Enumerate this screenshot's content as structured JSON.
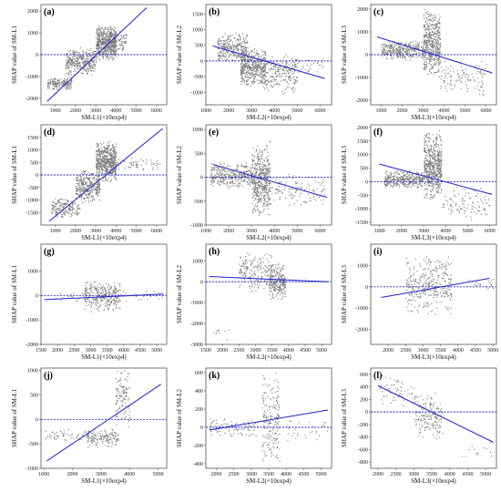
{
  "chart_data": [
    {
      "label": "(a)",
      "type": "scatter",
      "xlabel": "SM-L1(×10exp4)",
      "ylabel": "SHAP value of SM-L1",
      "xlim": [
        300,
        6500
      ],
      "ylim": [
        -2300,
        2300
      ],
      "xticks": [
        1000,
        2000,
        3000,
        4000,
        5000,
        6000
      ],
      "yticks": [
        -2000,
        -1000,
        0,
        1000,
        2000
      ],
      "clusters": [
        [
          600,
          1800,
          -1600,
          -1000,
          180
        ],
        [
          1500,
          3000,
          -900,
          300,
          350
        ],
        [
          3000,
          4000,
          -200,
          1300,
          600
        ],
        [
          3800,
          4500,
          200,
          1100,
          80
        ]
      ],
      "fit": [
        [
          600,
          -2150
        ],
        [
          5500,
          2150
        ]
      ],
      "mean_baseline": 0
    },
    {
      "label": "(b)",
      "type": "scatter",
      "xlabel": "SM-L2(×10exp4)",
      "ylabel": "SHAP value of SM-L2",
      "xlim": [
        1000,
        6500
      ],
      "ylim": [
        -1400,
        1800
      ],
      "xticks": [
        1000,
        2000,
        3000,
        4000,
        5000,
        6000
      ],
      "yticks": [
        -1000,
        -500,
        0,
        500,
        1000,
        1500
      ],
      "clusters": [
        [
          1500,
          2800,
          0,
          900,
          300
        ],
        [
          2500,
          3600,
          -800,
          400,
          500
        ],
        [
          3500,
          5000,
          -1000,
          200,
          200
        ],
        [
          4000,
          6200,
          -400,
          100,
          60
        ]
      ],
      "fit": [
        [
          1300,
          480
        ],
        [
          6200,
          -560
        ]
      ],
      "mean_baseline": 0
    },
    {
      "label": "(c)",
      "type": "scatter",
      "xlabel": "SM-L3(×10exp4)",
      "ylabel": "SHAP value of SM-L3",
      "xlim": [
        500,
        6500
      ],
      "ylim": [
        -2200,
        2200
      ],
      "xticks": [
        1000,
        2000,
        3000,
        4000,
        5000,
        6000
      ],
      "yticks": [
        -2000,
        -1000,
        0,
        1000,
        2000
      ],
      "clusters": [
        [
          1000,
          3000,
          -200,
          600,
          350
        ],
        [
          3000,
          3800,
          -900,
          1900,
          500
        ],
        [
          3800,
          6000,
          -1800,
          -200,
          120
        ]
      ],
      "fit": [
        [
          800,
          780
        ],
        [
          6300,
          -800
        ]
      ],
      "mean_baseline": 0
    },
    {
      "label": "(d)",
      "type": "scatter",
      "xlabel": "SM-L1(×10exp4)",
      "ylabel": "SHAP value of SM-L1",
      "xlim": [
        300,
        6500
      ],
      "ylim": [
        -2000,
        2000
      ],
      "xticks": [
        1000,
        2000,
        3000,
        4000,
        5000,
        6000
      ],
      "yticks": [
        -1500,
        -1000,
        -500,
        0,
        500,
        1000,
        1500
      ],
      "clusters": [
        [
          800,
          2200,
          -1700,
          -900,
          180
        ],
        [
          2000,
          3200,
          -1100,
          200,
          350
        ],
        [
          3000,
          4000,
          -200,
          1300,
          600
        ],
        [
          4000,
          6200,
          200,
          700,
          60
        ]
      ],
      "fit": [
        [
          700,
          -1850
        ],
        [
          6300,
          1850
        ]
      ],
      "mean_baseline": 0
    },
    {
      "label": "(e)",
      "type": "scatter",
      "xlabel": "SM-L2(×10exp4)",
      "ylabel": "SHAP value of SM-L2",
      "xlim": [
        1000,
        6500
      ],
      "ylim": [
        -1000,
        1100
      ],
      "xticks": [
        1000,
        2000,
        3000,
        4000,
        5000,
        6000
      ],
      "yticks": [
        -1000,
        -500,
        0,
        500,
        1000
      ],
      "clusters": [
        [
          1200,
          3000,
          -200,
          300,
          350
        ],
        [
          3000,
          3800,
          -800,
          700,
          500
        ],
        [
          3800,
          6200,
          -600,
          100,
          120
        ]
      ],
      "fit": [
        [
          1300,
          270
        ],
        [
          6300,
          -420
        ]
      ],
      "mean_baseline": 0
    },
    {
      "label": "(f)",
      "type": "scatter",
      "xlabel": "SM-L3(×10exp4)",
      "ylabel": "SHAP value of SM-L3",
      "xlim": [
        600,
        6300
      ],
      "ylim": [
        -1600,
        2100
      ],
      "xticks": [
        1000,
        2000,
        3000,
        4000,
        5000,
        6000
      ],
      "yticks": [
        -1500,
        -1000,
        -500,
        0,
        500,
        1000,
        1500,
        2000
      ],
      "clusters": [
        [
          1200,
          3000,
          -200,
          400,
          350
        ],
        [
          3000,
          3800,
          -600,
          1800,
          600
        ],
        [
          3800,
          6000,
          -1400,
          -200,
          100
        ]
      ],
      "fit": [
        [
          1000,
          650
        ],
        [
          6100,
          -470
        ]
      ],
      "mean_baseline": 0
    },
    {
      "label": "(g)",
      "type": "scatter",
      "xlabel": "SM-L1(×10exp4)",
      "ylabel": "SHAP value of SM-L1",
      "xlim": [
        1500,
        5300
      ],
      "ylim": [
        -2000,
        2100
      ],
      "xticks": [
        1500,
        2000,
        2500,
        3000,
        3500,
        4000,
        4500,
        5000
      ],
      "yticks": [
        -2000,
        -1000,
        0,
        1000
      ],
      "clusters": [
        [
          2800,
          3900,
          -600,
          600,
          300
        ],
        [
          1600,
          5200,
          -300,
          300,
          60
        ]
      ],
      "fit": [
        [
          1600,
          -170
        ],
        [
          5200,
          60
        ]
      ],
      "mean_baseline": 0
    },
    {
      "label": "(h)",
      "type": "scatter",
      "xlabel": "SM-L2(×10exp4)",
      "ylabel": "SHAP value of SM-L2",
      "xlim": [
        1500,
        5300
      ],
      "ylim": [
        -3000,
        1800
      ],
      "xticks": [
        1500,
        2000,
        2500,
        3000,
        3500,
        4000,
        4500,
        5000
      ],
      "yticks": [
        -3000,
        -2000,
        -1000,
        0,
        1000
      ],
      "clusters": [
        [
          2500,
          3500,
          -400,
          1400,
          200
        ],
        [
          3400,
          3900,
          -800,
          900,
          250
        ],
        [
          1700,
          2200,
          -2800,
          -2000,
          10
        ]
      ],
      "fit": [
        [
          1600,
          250
        ],
        [
          5200,
          0
        ]
      ],
      "mean_baseline": 0
    },
    {
      "label": "(i)",
      "type": "scatter",
      "xlabel": "SM-L3(×10exp4)",
      "ylabel": "SHAP value of SM-L3",
      "xlim": [
        1500,
        5100
      ],
      "ylim": [
        -2700,
        2000
      ],
      "xticks": [
        2000,
        2500,
        3000,
        3500,
        4000,
        4500,
        5000
      ],
      "yticks": [
        -2000,
        -1000,
        0,
        1000
      ],
      "clusters": [
        [
          2500,
          3800,
          -1200,
          1500,
          350
        ],
        [
          4300,
          5000,
          -100,
          500,
          20
        ]
      ],
      "fit": [
        [
          1800,
          -500
        ],
        [
          4900,
          400
        ]
      ],
      "mean_baseline": 0
    },
    {
      "label": "(j)",
      "type": "scatter",
      "xlabel": "SM-L1(×10exp4)",
      "ylabel": "SHAP value of SM-L1",
      "xlim": [
        900,
        5300
      ],
      "ylim": [
        -1000,
        1050
      ],
      "xticks": [
        1000,
        2000,
        3000,
        4000,
        5000
      ],
      "yticks": [
        -1000,
        -500,
        0,
        500,
        1000
      ],
      "clusters": [
        [
          1000,
          2700,
          -450,
          -200,
          60
        ],
        [
          2500,
          3600,
          -550,
          -200,
          150
        ],
        [
          3500,
          4000,
          -100,
          1000,
          120
        ]
      ],
      "fit": [
        [
          1100,
          -850
        ],
        [
          5100,
          720
        ]
      ],
      "mean_baseline": 0
    },
    {
      "label": "(k)",
      "type": "scatter",
      "xlabel": "SM-L2(×10exp4)",
      "ylabel": "SHAP value of SM-L2",
      "xlim": [
        1700,
        5300
      ],
      "ylim": [
        -450,
        650
      ],
      "xticks": [
        2000,
        2500,
        3000,
        3500,
        4000,
        4500,
        5000
      ],
      "yticks": [
        -400,
        -200,
        0,
        200,
        400,
        600
      ],
      "clusters": [
        [
          1800,
          3200,
          -100,
          100,
          100
        ],
        [
          3300,
          3800,
          -400,
          600,
          200
        ],
        [
          4000,
          5200,
          -200,
          100,
          30
        ]
      ],
      "fit": [
        [
          1800,
          -30
        ],
        [
          5200,
          190
        ]
      ],
      "mean_baseline": 0
    },
    {
      "label": "(l)",
      "type": "scatter",
      "xlabel": "SM-L3(×10exp4)",
      "ylabel": "SHAP value of SM-L3",
      "xlim": [
        1800,
        5300
      ],
      "ylim": [
        -900,
        700
      ],
      "xticks": [
        2000,
        2500,
        3000,
        3500,
        4000,
        4500,
        5000
      ],
      "yticks": [
        -800,
        -600,
        -400,
        -200,
        0,
        200,
        400,
        600
      ],
      "clusters": [
        [
          2000,
          3000,
          100,
          600,
          60
        ],
        [
          3000,
          3800,
          -400,
          300,
          180
        ],
        [
          4300,
          5200,
          -800,
          -400,
          15
        ]
      ],
      "fit": [
        [
          2000,
          420
        ],
        [
          5200,
          -480
        ]
      ],
      "mean_baseline": 0
    }
  ],
  "colors": {
    "points": "#7a7a7a",
    "fit": "#2020d0",
    "baseline": "#1e1ed8",
    "frame": "#555555"
  }
}
